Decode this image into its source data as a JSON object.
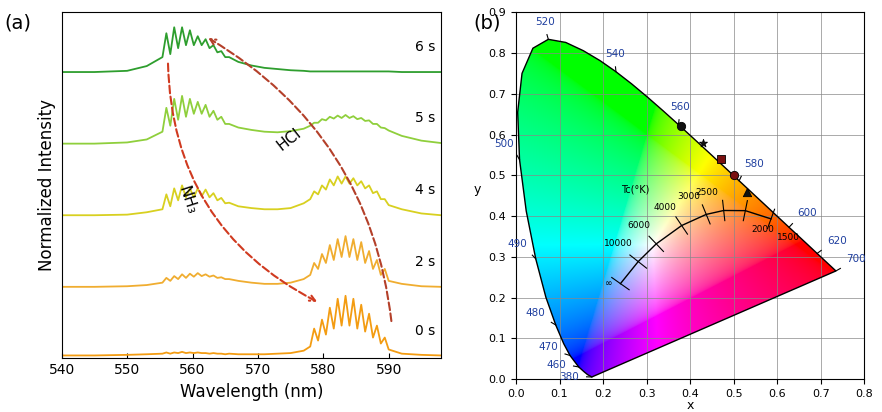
{
  "chart_data": [
    {
      "type": "line",
      "title": "(a)",
      "x_label": "Wavelength (nm)",
      "y_label": "Normalized Intensity",
      "xlim": [
        540,
        598
      ],
      "xticks": [
        540,
        550,
        560,
        570,
        580,
        590
      ],
      "ylim": [
        -0.05,
        5.75
      ],
      "tick_labels": "x",
      "annotations": [
        "HCl",
        "NH₃"
      ],
      "x": [
        540,
        545,
        550,
        553,
        555.4,
        556.0,
        556.6,
        557.2,
        557.8,
        558.4,
        559.0,
        559.6,
        560.2,
        560.8,
        561.4,
        562.0,
        562.6,
        563.2,
        563.8,
        564.4,
        565.0,
        565.6,
        567,
        569,
        571,
        573,
        575,
        577,
        578.0,
        578.6,
        579.2,
        579.8,
        580.4,
        581.0,
        581.6,
        582.2,
        582.8,
        583.4,
        584.0,
        584.6,
        585.2,
        585.8,
        586.4,
        587.0,
        587.6,
        588.2,
        588.8,
        589.4,
        590.0,
        592,
        595,
        598
      ],
      "series": [
        {
          "name": "0 s",
          "color": "#f39c12",
          "values": [
            0,
            0,
            0.01,
            0.02,
            0.03,
            0.05,
            0.03,
            0.05,
            0.04,
            0.06,
            0.04,
            0.05,
            0.04,
            0.05,
            0.04,
            0.04,
            0.03,
            0.04,
            0.03,
            0.03,
            0.02,
            0.03,
            0.02,
            0.02,
            0.02,
            0.03,
            0.04,
            0.08,
            0.15,
            0.45,
            0.25,
            0.6,
            0.35,
            0.8,
            0.45,
            0.95,
            0.5,
            1.0,
            0.5,
            0.95,
            0.45,
            0.85,
            0.4,
            0.7,
            0.3,
            0.5,
            0.2,
            0.3,
            0.1,
            0.03,
            0.01,
            0
          ]
        },
        {
          "name": "2 s",
          "color": "#f0ad30",
          "values": [
            1.15,
            1.15,
            1.16,
            1.18,
            1.22,
            1.3,
            1.25,
            1.33,
            1.28,
            1.36,
            1.3,
            1.37,
            1.32,
            1.38,
            1.33,
            1.36,
            1.32,
            1.34,
            1.3,
            1.31,
            1.28,
            1.28,
            1.25,
            1.22,
            1.2,
            1.2,
            1.22,
            1.28,
            1.35,
            1.55,
            1.45,
            1.7,
            1.55,
            1.85,
            1.6,
            1.95,
            1.65,
            2.0,
            1.65,
            1.95,
            1.6,
            1.9,
            1.55,
            1.75,
            1.45,
            1.6,
            1.35,
            1.45,
            1.25,
            1.2,
            1.16,
            1.15
          ]
        },
        {
          "name": "4 s",
          "color": "#d8d020",
          "values": [
            2.35,
            2.35,
            2.36,
            2.4,
            2.45,
            2.7,
            2.5,
            2.8,
            2.6,
            2.85,
            2.65,
            2.8,
            2.65,
            2.8,
            2.67,
            2.78,
            2.65,
            2.72,
            2.6,
            2.64,
            2.55,
            2.56,
            2.5,
            2.47,
            2.45,
            2.45,
            2.47,
            2.55,
            2.62,
            2.75,
            2.7,
            2.85,
            2.78,
            2.95,
            2.85,
            3.0,
            2.88,
            3.0,
            2.88,
            2.97,
            2.85,
            2.92,
            2.8,
            2.85,
            2.72,
            2.75,
            2.62,
            2.62,
            2.52,
            2.45,
            2.38,
            2.35
          ]
        },
        {
          "name": "5 s",
          "color": "#8fcf3c",
          "values": [
            3.55,
            3.55,
            3.57,
            3.62,
            3.75,
            4.15,
            3.85,
            4.3,
            3.95,
            4.35,
            4.0,
            4.3,
            4.05,
            4.25,
            4.05,
            4.2,
            4.0,
            4.1,
            3.95,
            4.0,
            3.88,
            3.88,
            3.82,
            3.78,
            3.75,
            3.74,
            3.76,
            3.8,
            3.85,
            3.9,
            3.9,
            3.96,
            3.94,
            4.0,
            3.97,
            4.02,
            3.98,
            4.03,
            3.98,
            4.01,
            3.96,
            3.98,
            3.93,
            3.94,
            3.88,
            3.88,
            3.82,
            3.81,
            3.77,
            3.68,
            3.6,
            3.56
          ]
        },
        {
          "name": "6 s",
          "color": "#2e9e2e",
          "values": [
            4.75,
            4.75,
            4.77,
            4.85,
            5.0,
            5.4,
            5.05,
            5.5,
            5.15,
            5.5,
            5.2,
            5.45,
            5.2,
            5.35,
            5.2,
            5.3,
            5.15,
            5.2,
            5.08,
            5.1,
            5.0,
            5.0,
            4.92,
            4.86,
            4.82,
            4.8,
            4.78,
            4.77,
            4.76,
            4.76,
            4.76,
            4.76,
            4.76,
            4.76,
            4.76,
            4.76,
            4.76,
            4.76,
            4.76,
            4.76,
            4.76,
            4.76,
            4.76,
            4.76,
            4.76,
            4.76,
            4.76,
            4.76,
            4.76,
            4.75,
            4.75,
            4.75
          ]
        }
      ]
    },
    {
      "type": "scatter",
      "title": "(b)",
      "x_label": "x",
      "y_label": "y",
      "xlim": [
        0.0,
        0.8
      ],
      "xticks": [
        0.0,
        0.1,
        0.2,
        0.3,
        0.4,
        0.5,
        0.6,
        0.7,
        0.8
      ],
      "ylim": [
        0.0,
        0.9
      ],
      "yticks": [
        0.0,
        0.1,
        0.2,
        0.3,
        0.4,
        0.5,
        0.6,
        0.7,
        0.8,
        0.9
      ],
      "grid": true,
      "spectral_locus": {
        "x": [
          0.1741,
          0.1644,
          0.1566,
          0.144,
          0.1241,
          0.1096,
          0.0913,
          0.0687,
          0.0454,
          0.0235,
          0.0082,
          0.0039,
          0.0139,
          0.0389,
          0.0743,
          0.1142,
          0.1547,
          0.1929,
          0.2296,
          0.2658,
          0.3016,
          0.3373,
          0.3731,
          0.4087,
          0.4441,
          0.4788,
          0.5125,
          0.5448,
          0.5752,
          0.6029,
          0.627,
          0.6658,
          0.6915,
          0.719,
          0.7347
        ],
        "y": [
          0.005,
          0.0109,
          0.0177,
          0.0297,
          0.0578,
          0.0868,
          0.1327,
          0.2007,
          0.295,
          0.4127,
          0.5384,
          0.6548,
          0.7502,
          0.812,
          0.8338,
          0.8262,
          0.8059,
          0.7816,
          0.7543,
          0.7243,
          0.6923,
          0.6589,
          0.6245,
          0.5896,
          0.5547,
          0.5202,
          0.4866,
          0.4544,
          0.4242,
          0.3965,
          0.3725,
          0.334,
          0.3083,
          0.2809,
          0.2653
        ],
        "labels": [
          "380",
          null,
          null,
          "460",
          "470",
          null,
          "480",
          null,
          "490",
          null,
          "500",
          null,
          null,
          null,
          "520",
          null,
          null,
          null,
          "540",
          null,
          null,
          null,
          "560",
          null,
          null,
          null,
          "580",
          null,
          null,
          null,
          "600",
          null,
          "620",
          null,
          "700"
        ]
      },
      "planckian_locus": {
        "label": "Tc(°K)",
        "x": [
          0.2399,
          0.2807,
          0.3221,
          0.3805,
          0.4369,
          0.477,
          0.5267,
          0.5857
        ],
        "y": [
          0.2342,
          0.2883,
          0.3318,
          0.3768,
          0.4041,
          0.4137,
          0.4133,
          0.3931
        ],
        "labels": [
          "∞",
          "10000",
          "6000",
          "4000",
          "3000",
          "2500",
          "2000",
          "1500"
        ]
      },
      "series": [
        {
          "x": [
            0.38
          ],
          "y": [
            0.62
          ],
          "marker": "o",
          "color": "#111111"
        },
        {
          "x": [
            0.43
          ],
          "y": [
            0.58
          ],
          "marker": "*",
          "color": "#111111"
        },
        {
          "x": [
            0.47
          ],
          "y": [
            0.54
          ],
          "marker": "s",
          "color": "#7a1010"
        },
        {
          "x": [
            0.5
          ],
          "y": [
            0.5
          ],
          "marker": "o",
          "color": "#7a1010"
        },
        {
          "x": [
            0.53
          ],
          "y": [
            0.46
          ],
          "marker": "^",
          "color": "#111111"
        }
      ]
    }
  ]
}
